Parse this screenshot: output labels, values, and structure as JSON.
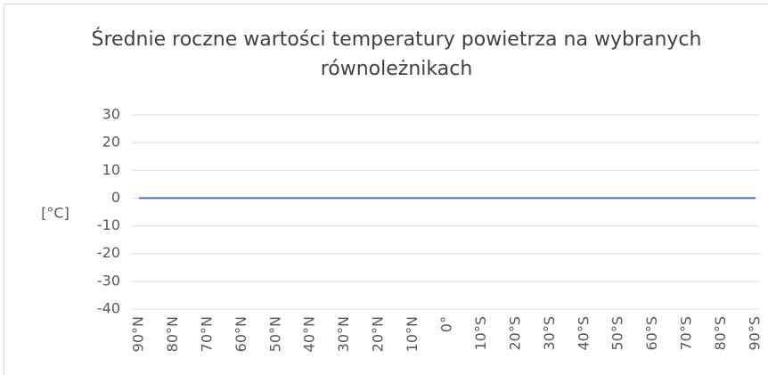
{
  "chart_data": {
    "type": "line",
    "title": "Średnie roczne wartości temperatury powietrza na wybranych równoleżnikach",
    "y_label": "[°C]",
    "categories": [
      "90°N",
      "80°N",
      "70°N",
      "60°N",
      "50°N",
      "40°N",
      "30°N",
      "20°N",
      "10°N",
      "0°",
      "10°S",
      "20°S",
      "30°S",
      "40°S",
      "50°S",
      "60°S",
      "70°S",
      "80°S",
      "90°S"
    ],
    "values": [
      0,
      0,
      0,
      0,
      0,
      0,
      0,
      0,
      0,
      0,
      0,
      0,
      0,
      0,
      0,
      0,
      0,
      0,
      0
    ],
    "color": "#4472c4",
    "ylim": [
      -40,
      30
    ],
    "yticks": [
      -40,
      -30,
      -20,
      -10,
      0,
      10,
      20,
      30
    ],
    "grid": true
  }
}
